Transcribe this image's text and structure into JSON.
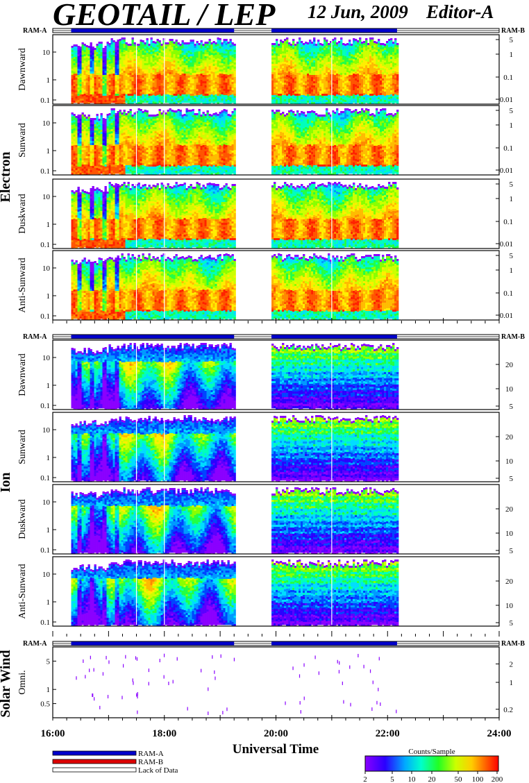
{
  "header": {
    "title": "GEOTAIL / LEP",
    "date": "12 Jun, 2009",
    "editor": "Editor-A"
  },
  "ram_labels": {
    "left": "RAM-A",
    "right": "RAM-B"
  },
  "groups": [
    {
      "name": "Electron",
      "panels": [
        {
          "label": "Dawnward"
        },
        {
          "label": "Sunward"
        },
        {
          "label": "Duskward"
        },
        {
          "label": "Anti-Sunward"
        }
      ],
      "left_ticks": [
        "10",
        "1",
        "0.1"
      ],
      "right_ticks": [
        "5",
        "1",
        "0.1",
        "0.01"
      ]
    },
    {
      "name": "Ion",
      "panels": [
        {
          "label": "Dawnward"
        },
        {
          "label": "Sunward"
        },
        {
          "label": "Duskward"
        },
        {
          "label": "Anti-Sunward"
        }
      ],
      "left_ticks": [
        "10",
        "1",
        "0.1"
      ],
      "right_ticks": [
        "20",
        "10",
        "5"
      ]
    },
    {
      "name": "Solar Wind",
      "panels": [
        {
          "label": "Omni."
        }
      ],
      "left_ticks": [
        "5",
        "1",
        "0.5"
      ],
      "right_ticks": [
        "2",
        "1",
        "0.2"
      ]
    }
  ],
  "x_axis": {
    "label": "Universal Time",
    "ticks": [
      "16:00",
      "18:00",
      "20:00",
      "22:00",
      "24:00"
    ]
  },
  "legend": {
    "items": [
      {
        "label": "RAM-A",
        "color": "#0000cc"
      },
      {
        "label": "RAM-B",
        "color": "#dd0000"
      },
      {
        "label": "Lack of Data",
        "color": "#ffffff"
      }
    ],
    "colorbar_title": "Counts/Sample",
    "colorbar_ticks": [
      "2",
      "5",
      "10",
      "20",
      "50",
      "100",
      "200"
    ]
  },
  "chart_data": {
    "type": "heatmap",
    "title": "GEOTAIL / LEP",
    "xlabel": "Universal Time",
    "x_range_hours": [
      16,
      24
    ],
    "data_intervals_hours": [
      [
        16.33,
        19.25
      ],
      [
        19.92,
        22.17
      ]
    ],
    "ram_a_intervals_hours": [
      [
        16.33,
        19.25
      ],
      [
        19.92,
        22.17
      ]
    ],
    "color_scale": "log",
    "color_range": [
      2,
      200
    ],
    "colors": {
      "ram_a": "#0000cc",
      "ram_b": "#dd0000"
    }
  }
}
